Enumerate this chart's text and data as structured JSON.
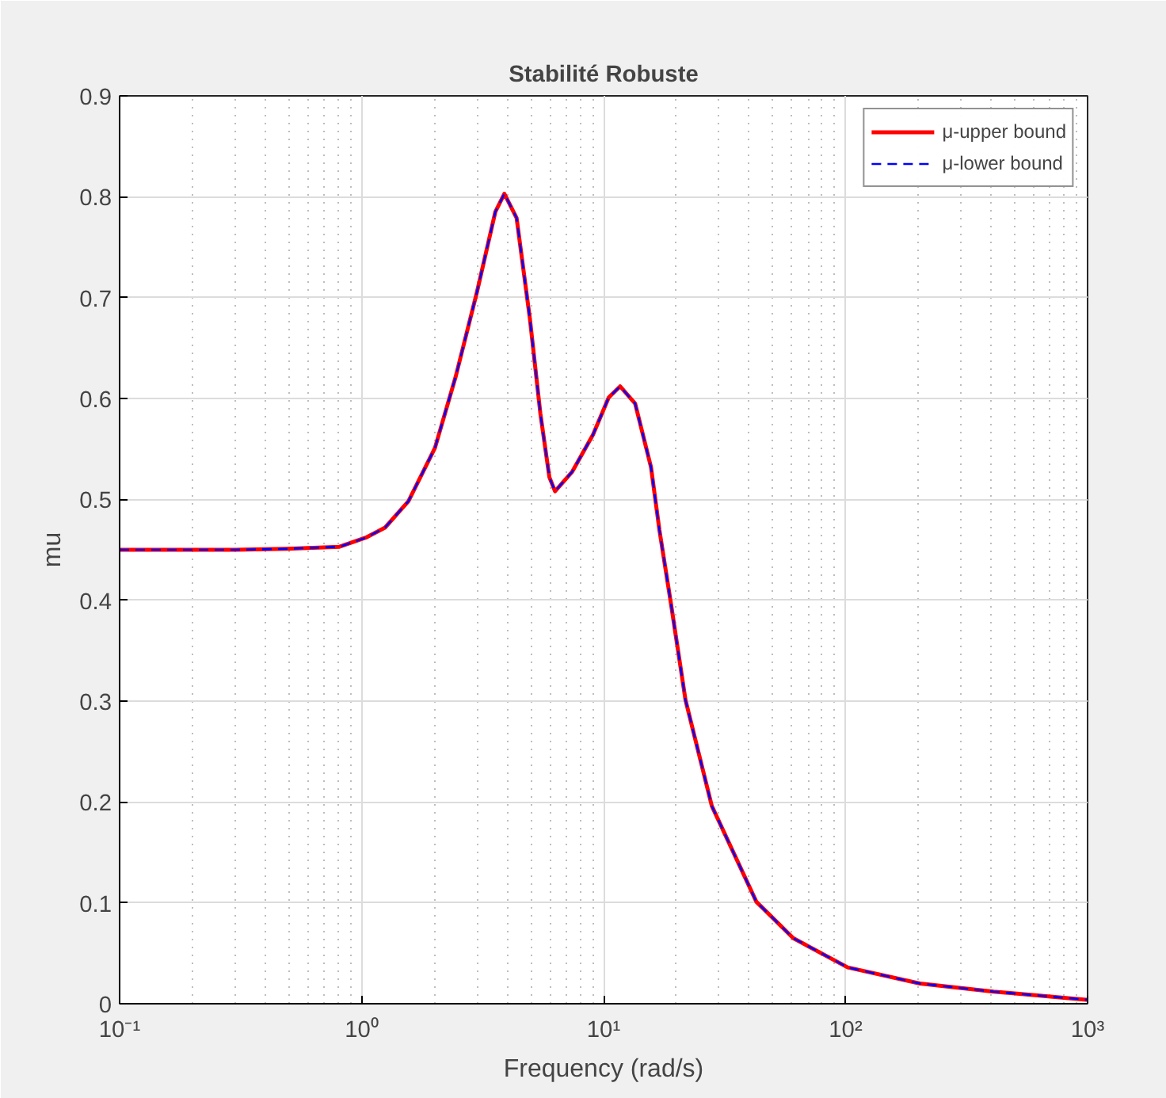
{
  "chart_data": {
    "type": "line",
    "title": "Stabilité Robuste",
    "xlabel": "Frequency (rad/s)",
    "ylabel": "mu",
    "log": "x",
    "xlim": [
      0.1,
      1000
    ],
    "ylim": [
      0,
      0.9
    ],
    "xticks": [
      {
        "value": 0.1,
        "label": "10⁻¹"
      },
      {
        "value": 1,
        "label": "10⁰"
      },
      {
        "value": 10,
        "label": "10¹"
      },
      {
        "value": 100,
        "label": "10²"
      },
      {
        "value": 1000,
        "label": "10³"
      }
    ],
    "yticks": [
      0,
      0.1,
      0.2,
      0.3,
      0.4,
      0.5,
      0.6,
      0.7,
      0.8,
      0.9
    ],
    "x": [
      0.1,
      0.3,
      0.49,
      0.81,
      1.04,
      1.25,
      1.56,
      2.01,
      2.45,
      3.0,
      3.57,
      3.89,
      4.37,
      4.96,
      5.48,
      5.97,
      6.3,
      7.4,
      9.04,
      10.5,
      11.7,
      13.5,
      15.7,
      17,
      19.0,
      21.8,
      28.0,
      42.8,
      60.8,
      102,
      203,
      409,
      986,
      1000
    ],
    "series": [
      {
        "name": "μ-upper bound",
        "color": "#ff0000",
        "line_style": "solid",
        "values": [
          0.45,
          0.45,
          0.451,
          0.453,
          0.462,
          0.472,
          0.498,
          0.551,
          0.622,
          0.706,
          0.785,
          0.803,
          0.779,
          0.679,
          0.585,
          0.522,
          0.508,
          0.527,
          0.564,
          0.601,
          0.612,
          0.595,
          0.532,
          0.47,
          0.396,
          0.301,
          0.196,
          0.101,
          0.065,
          0.036,
          0.02,
          0.012,
          0.004,
          0.004
        ]
      },
      {
        "name": "μ-lower bound",
        "color": "#0000ff",
        "line_style": "dashed",
        "values": [
          0.45,
          0.45,
          0.451,
          0.453,
          0.462,
          0.472,
          0.498,
          0.551,
          0.622,
          0.706,
          0.785,
          0.803,
          0.779,
          0.679,
          0.585,
          0.522,
          0.508,
          0.527,
          0.564,
          0.601,
          0.612,
          0.595,
          0.532,
          0.47,
          0.396,
          0.301,
          0.196,
          0.101,
          0.065,
          0.036,
          0.02,
          0.012,
          0.004,
          0.004
        ]
      }
    ],
    "grid": true,
    "legend": "top right",
    "marker": "none"
  }
}
